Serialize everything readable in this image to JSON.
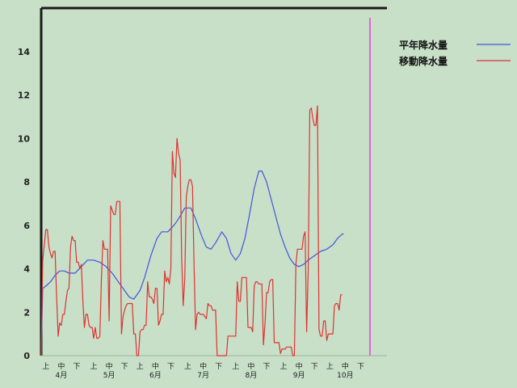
{
  "chart_data": {
    "type": "line",
    "title": "",
    "xlabel": "",
    "ylabel": "",
    "ylim": [
      0,
      16
    ],
    "yticks": [
      0,
      2,
      4,
      6,
      8,
      10,
      12,
      14
    ],
    "xlim": [
      0,
      224
    ],
    "grid": false,
    "legend_position": "top-right",
    "period_ticks": [
      {
        "label": "上",
        "x": 3
      },
      {
        "label": "中",
        "x": 13
      },
      {
        "label": "下",
        "x": 23
      },
      {
        "label": "上",
        "x": 34
      },
      {
        "label": "中",
        "x": 44
      },
      {
        "label": "下",
        "x": 54
      },
      {
        "label": "上",
        "x": 64
      },
      {
        "label": "中",
        "x": 74
      },
      {
        "label": "下",
        "x": 84
      },
      {
        "label": "上",
        "x": 95
      },
      {
        "label": "中",
        "x": 105
      },
      {
        "label": "下",
        "x": 115
      },
      {
        "label": "上",
        "x": 126
      },
      {
        "label": "中",
        "x": 136
      },
      {
        "label": "下",
        "x": 146
      },
      {
        "label": "上",
        "x": 157
      },
      {
        "label": "中",
        "x": 167
      },
      {
        "label": "下",
        "x": 177
      },
      {
        "label": "上",
        "x": 187
      },
      {
        "label": "中",
        "x": 197
      },
      {
        "label": "下",
        "x": 207
      }
    ],
    "month_ticks": [
      {
        "label": "4月",
        "x": 13
      },
      {
        "label": "5月",
        "x": 44
      },
      {
        "label": "6月",
        "x": 74
      },
      {
        "label": "7月",
        "x": 105
      },
      {
        "label": "8月",
        "x": 136
      },
      {
        "label": "9月",
        "x": 167
      },
      {
        "label": "10月",
        "x": 197
      }
    ],
    "marker_x": 213,
    "marker_color": "#dd66dd",
    "series": [
      {
        "name": "平年降水量",
        "color": "#4455dd",
        "points": [
          [
            0,
            0
          ],
          [
            1,
            3.1
          ],
          [
            3,
            3.2
          ],
          [
            6,
            3.4
          ],
          [
            9,
            3.7
          ],
          [
            12,
            3.9
          ],
          [
            15,
            3.9
          ],
          [
            18,
            3.8
          ],
          [
            22,
            3.8
          ],
          [
            26,
            4.1
          ],
          [
            30,
            4.4
          ],
          [
            34,
            4.4
          ],
          [
            38,
            4.3
          ],
          [
            42,
            4.1
          ],
          [
            46,
            3.8
          ],
          [
            50,
            3.4
          ],
          [
            54,
            3.0
          ],
          [
            57,
            2.7
          ],
          [
            60,
            2.6
          ],
          [
            64,
            3.0
          ],
          [
            67,
            3.6
          ],
          [
            71,
            4.6
          ],
          [
            75,
            5.4
          ],
          [
            78,
            5.7
          ],
          [
            82,
            5.7
          ],
          [
            86,
            6.0
          ],
          [
            89,
            6.3
          ],
          [
            93,
            6.8
          ],
          [
            97,
            6.8
          ],
          [
            100,
            6.3
          ],
          [
            104,
            5.5
          ],
          [
            107,
            5.0
          ],
          [
            110,
            4.9
          ],
          [
            113,
            5.2
          ],
          [
            117,
            5.7
          ],
          [
            120,
            5.4
          ],
          [
            123,
            4.7
          ],
          [
            126,
            4.4
          ],
          [
            129,
            4.7
          ],
          [
            132,
            5.4
          ],
          [
            135,
            6.5
          ],
          [
            138,
            7.7
          ],
          [
            141,
            8.5
          ],
          [
            143,
            8.5
          ],
          [
            146,
            8.0
          ],
          [
            149,
            7.2
          ],
          [
            152,
            6.4
          ],
          [
            155,
            5.6
          ],
          [
            158,
            5.0
          ],
          [
            161,
            4.5
          ],
          [
            164,
            4.2
          ],
          [
            167,
            4.1
          ],
          [
            170,
            4.2
          ],
          [
            173,
            4.4
          ],
          [
            177,
            4.6
          ],
          [
            181,
            4.8
          ],
          [
            185,
            4.9
          ],
          [
            189,
            5.1
          ],
          [
            192,
            5.4
          ],
          [
            195,
            5.6
          ],
          [
            196,
            5.6
          ]
        ]
      },
      {
        "name": "移動降水量",
        "color": "#dd3333",
        "points": [
          [
            0,
            0
          ],
          [
            1,
            4.4
          ],
          [
            3,
            5.8
          ],
          [
            4,
            5.8
          ],
          [
            5,
            5.0
          ],
          [
            6,
            4.7
          ],
          [
            7,
            4.5
          ],
          [
            8,
            4.8
          ],
          [
            9,
            4.8
          ],
          [
            10,
            2.7
          ],
          [
            11,
            0.9
          ],
          [
            12,
            1.5
          ],
          [
            13,
            1.4
          ],
          [
            14,
            1.9
          ],
          [
            15,
            1.9
          ],
          [
            16,
            2.5
          ],
          [
            17,
            3.0
          ],
          [
            18,
            3.1
          ],
          [
            19,
            5.0
          ],
          [
            20,
            5.5
          ],
          [
            21,
            5.3
          ],
          [
            22,
            5.3
          ],
          [
            23,
            4.3
          ],
          [
            24,
            4.3
          ],
          [
            25,
            4.0
          ],
          [
            26,
            4.2
          ],
          [
            27,
            2.5
          ],
          [
            28,
            1.3
          ],
          [
            29,
            1.9
          ],
          [
            30,
            1.9
          ],
          [
            31,
            1.4
          ],
          [
            32,
            1.3
          ],
          [
            33,
            1.3
          ],
          [
            34,
            0.8
          ],
          [
            35,
            1.3
          ],
          [
            36,
            0.8
          ],
          [
            37,
            0.8
          ],
          [
            38,
            0.9
          ],
          [
            39,
            3.5
          ],
          [
            40,
            5.3
          ],
          [
            41,
            4.9
          ],
          [
            42,
            4.9
          ],
          [
            43,
            4.9
          ],
          [
            44,
            1.6
          ],
          [
            45,
            6.9
          ],
          [
            46,
            6.7
          ],
          [
            47,
            6.5
          ],
          [
            48,
            6.5
          ],
          [
            49,
            7.1
          ],
          [
            50,
            7.1
          ],
          [
            51,
            7.1
          ],
          [
            52,
            1.0
          ],
          [
            53,
            1.8
          ],
          [
            54,
            2.1
          ],
          [
            55,
            2.3
          ],
          [
            56,
            2.4
          ],
          [
            57,
            2.4
          ],
          [
            58,
            2.4
          ],
          [
            59,
            2.4
          ],
          [
            60,
            1.0
          ],
          [
            61,
            1.0
          ],
          [
            62,
            0.0
          ],
          [
            63,
            0.0
          ],
          [
            64,
            1.1
          ],
          [
            65,
            1.2
          ],
          [
            66,
            1.2
          ],
          [
            67,
            1.4
          ],
          [
            68,
            1.4
          ],
          [
            69,
            3.4
          ],
          [
            70,
            2.7
          ],
          [
            71,
            2.7
          ],
          [
            72,
            2.6
          ],
          [
            73,
            2.4
          ],
          [
            74,
            3.1
          ],
          [
            75,
            3.1
          ],
          [
            76,
            1.4
          ],
          [
            77,
            1.6
          ],
          [
            78,
            1.9
          ],
          [
            79,
            1.9
          ],
          [
            80,
            3.9
          ],
          [
            81,
            3.4
          ],
          [
            82,
            3.6
          ],
          [
            83,
            3.3
          ],
          [
            84,
            4.0
          ],
          [
            85,
            9.4
          ],
          [
            86,
            8.4
          ],
          [
            87,
            8.2
          ],
          [
            88,
            10.0
          ],
          [
            89,
            9.3
          ],
          [
            90,
            9.0
          ],
          [
            91,
            4.5
          ],
          [
            92,
            2.3
          ],
          [
            93,
            3.5
          ],
          [
            94,
            7.3
          ],
          [
            95,
            7.8
          ],
          [
            96,
            8.1
          ],
          [
            97,
            8.1
          ],
          [
            98,
            7.8
          ],
          [
            99,
            4.2
          ],
          [
            100,
            1.2
          ],
          [
            101,
            1.9
          ],
          [
            102,
            2.0
          ],
          [
            103,
            1.9
          ],
          [
            104,
            1.9
          ],
          [
            105,
            1.9
          ],
          [
            106,
            1.8
          ],
          [
            107,
            1.7
          ],
          [
            108,
            2.4
          ],
          [
            109,
            2.3
          ],
          [
            110,
            2.3
          ],
          [
            111,
            2.1
          ],
          [
            112,
            2.1
          ],
          [
            113,
            2.1
          ],
          [
            114,
            0.0
          ],
          [
            115,
            0.0
          ],
          [
            116,
            0.0
          ],
          [
            117,
            0.0
          ],
          [
            118,
            0.0
          ],
          [
            119,
            0.0
          ],
          [
            120,
            0.0
          ],
          [
            121,
            0.9
          ],
          [
            122,
            0.9
          ],
          [
            123,
            0.9
          ],
          [
            124,
            0.9
          ],
          [
            125,
            0.9
          ],
          [
            126,
            0.9
          ],
          [
            127,
            3.4
          ],
          [
            128,
            2.5
          ],
          [
            129,
            2.5
          ],
          [
            130,
            3.6
          ],
          [
            131,
            3.6
          ],
          [
            132,
            3.6
          ],
          [
            133,
            3.6
          ],
          [
            134,
            1.3
          ],
          [
            135,
            1.3
          ],
          [
            136,
            1.3
          ],
          [
            137,
            1.1
          ],
          [
            138,
            3.2
          ],
          [
            139,
            3.4
          ],
          [
            140,
            3.4
          ],
          [
            141,
            3.3
          ],
          [
            142,
            3.3
          ],
          [
            143,
            3.3
          ],
          [
            144,
            0.5
          ],
          [
            145,
            1.5
          ],
          [
            146,
            2.9
          ],
          [
            147,
            2.9
          ],
          [
            148,
            3.4
          ],
          [
            149,
            3.5
          ],
          [
            150,
            3.5
          ],
          [
            151,
            0.6
          ],
          [
            152,
            0.6
          ],
          [
            153,
            0.6
          ],
          [
            154,
            0.6
          ],
          [
            155,
            0.1
          ],
          [
            156,
            0.3
          ],
          [
            157,
            0.3
          ],
          [
            158,
            0.3
          ],
          [
            159,
            0.4
          ],
          [
            160,
            0.4
          ],
          [
            161,
            0.4
          ],
          [
            162,
            0.4
          ],
          [
            163,
            0.0
          ],
          [
            164,
            0.0
          ],
          [
            165,
            4.2
          ],
          [
            166,
            4.9
          ],
          [
            167,
            4.9
          ],
          [
            168,
            4.9
          ],
          [
            169,
            4.9
          ],
          [
            170,
            5.5
          ],
          [
            171,
            5.7
          ],
          [
            172,
            1.1
          ],
          [
            173,
            4.0
          ],
          [
            174,
            11.3
          ],
          [
            175,
            11.4
          ],
          [
            176,
            10.9
          ],
          [
            177,
            10.6
          ],
          [
            178,
            10.6
          ],
          [
            179,
            11.5
          ],
          [
            180,
            1.2
          ],
          [
            181,
            0.9
          ],
          [
            182,
            0.9
          ],
          [
            183,
            1.6
          ],
          [
            184,
            1.6
          ],
          [
            185,
            0.7
          ],
          [
            186,
            1.0
          ],
          [
            187,
            1.0
          ],
          [
            188,
            1.0
          ],
          [
            189,
            1.0
          ],
          [
            190,
            2.3
          ],
          [
            191,
            2.4
          ],
          [
            192,
            2.4
          ],
          [
            193,
            2.1
          ],
          [
            194,
            2.8
          ],
          [
            195,
            2.8
          ]
        ]
      }
    ]
  }
}
